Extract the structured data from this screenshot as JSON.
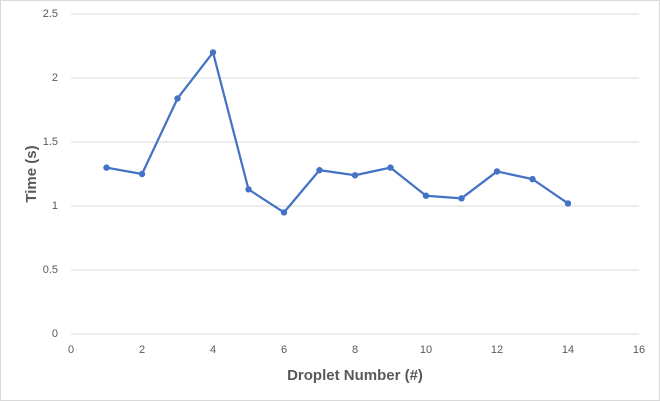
{
  "chart_data": {
    "type": "line",
    "x_label": "Droplet Number (#)",
    "y_label": "Time (s)",
    "x": [
      1,
      2,
      3,
      4,
      5,
      6,
      7,
      8,
      9,
      10,
      11,
      12,
      13,
      14
    ],
    "series": [
      {
        "color": "#4472c4",
        "values": [
          1.3,
          1.25,
          1.84,
          2.2,
          1.13,
          0.95,
          1.28,
          1.24,
          1.3,
          1.08,
          1.06,
          1.27,
          1.21,
          1.02
        ]
      }
    ],
    "xlim": [
      0,
      16
    ],
    "xticks": [
      0,
      2,
      4,
      6,
      8,
      10,
      12,
      14,
      16
    ],
    "ylim": [
      0,
      2.5
    ],
    "yticks": [
      0,
      0.5,
      1,
      1.5,
      2,
      2.5
    ],
    "grid": true
  }
}
